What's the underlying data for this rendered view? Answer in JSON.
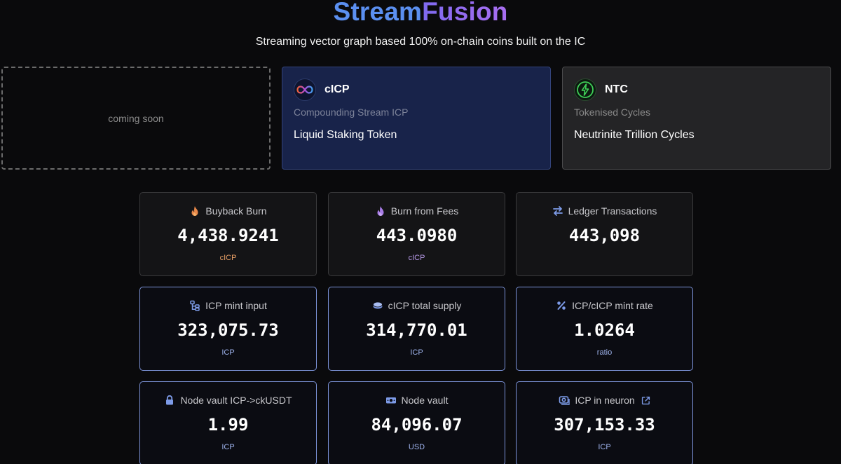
{
  "header": {
    "title_part1": "Stream",
    "title_part2": "Fusion",
    "subtitle": "Streaming vector graph based 100% on-chain coins built on the IC"
  },
  "tokens": [
    {
      "label": "coming soon"
    },
    {
      "symbol": "cICP",
      "subtitle": "Compounding Stream ICP",
      "tagline": "Liquid Staking Token",
      "icon": "infinity-icon"
    },
    {
      "symbol": "NTC",
      "subtitle": "Tokenised Cycles",
      "tagline": "Neutrinite Trillion Cycles",
      "icon": "lightning-icon"
    }
  ],
  "stats": [
    {
      "label": "Buyback Burn",
      "value": "4,438.9241",
      "unit": "cICP",
      "icon": "flame-icon",
      "unit_color": "#e9a066"
    },
    {
      "label": "Burn from Fees",
      "value": "443.0980",
      "unit": "cICP",
      "icon": "flame-icon",
      "unit_color": "#b79ae8"
    },
    {
      "label": "Ledger Transactions",
      "value": "443,098",
      "unit": "",
      "icon": "arrows-swap-icon",
      "unit_color": "#8fa8e8"
    },
    {
      "label": "ICP mint input",
      "value": "323,075.73",
      "unit": "ICP",
      "icon": "hierarchy-icon",
      "unit_color": "#9fb4ee"
    },
    {
      "label": "cICP total supply",
      "value": "314,770.01",
      "unit": "ICP",
      "icon": "coins-icon",
      "unit_color": "#9fb4ee"
    },
    {
      "label": "ICP/cICP mint rate",
      "value": "1.0264",
      "unit": "ratio",
      "icon": "percent-icon",
      "unit_color": "#9fb4ee"
    },
    {
      "label": "Node vault ICP->ckUSDT",
      "value": "1.99",
      "unit": "ICP",
      "icon": "lock-icon",
      "unit_color": "#9fb4ee"
    },
    {
      "label": "Node vault",
      "value": "84,096.07",
      "unit": "USD",
      "icon": "money-icon",
      "unit_color": "#9fb4ee"
    },
    {
      "label": "ICP in neuron",
      "value": "307,153.33",
      "unit": "ICP",
      "icon": "neuron-icon",
      "unit_color": "#9fb4ee"
    }
  ],
  "colors": {
    "accent_blue": "#5b8ff0",
    "accent_purple": "#a96ef0",
    "flame_orange": "#e9894a",
    "flame_purple": "#a97de8",
    "icon_blue": "#7d9be8",
    "ntc_green": "#3fcf57"
  }
}
